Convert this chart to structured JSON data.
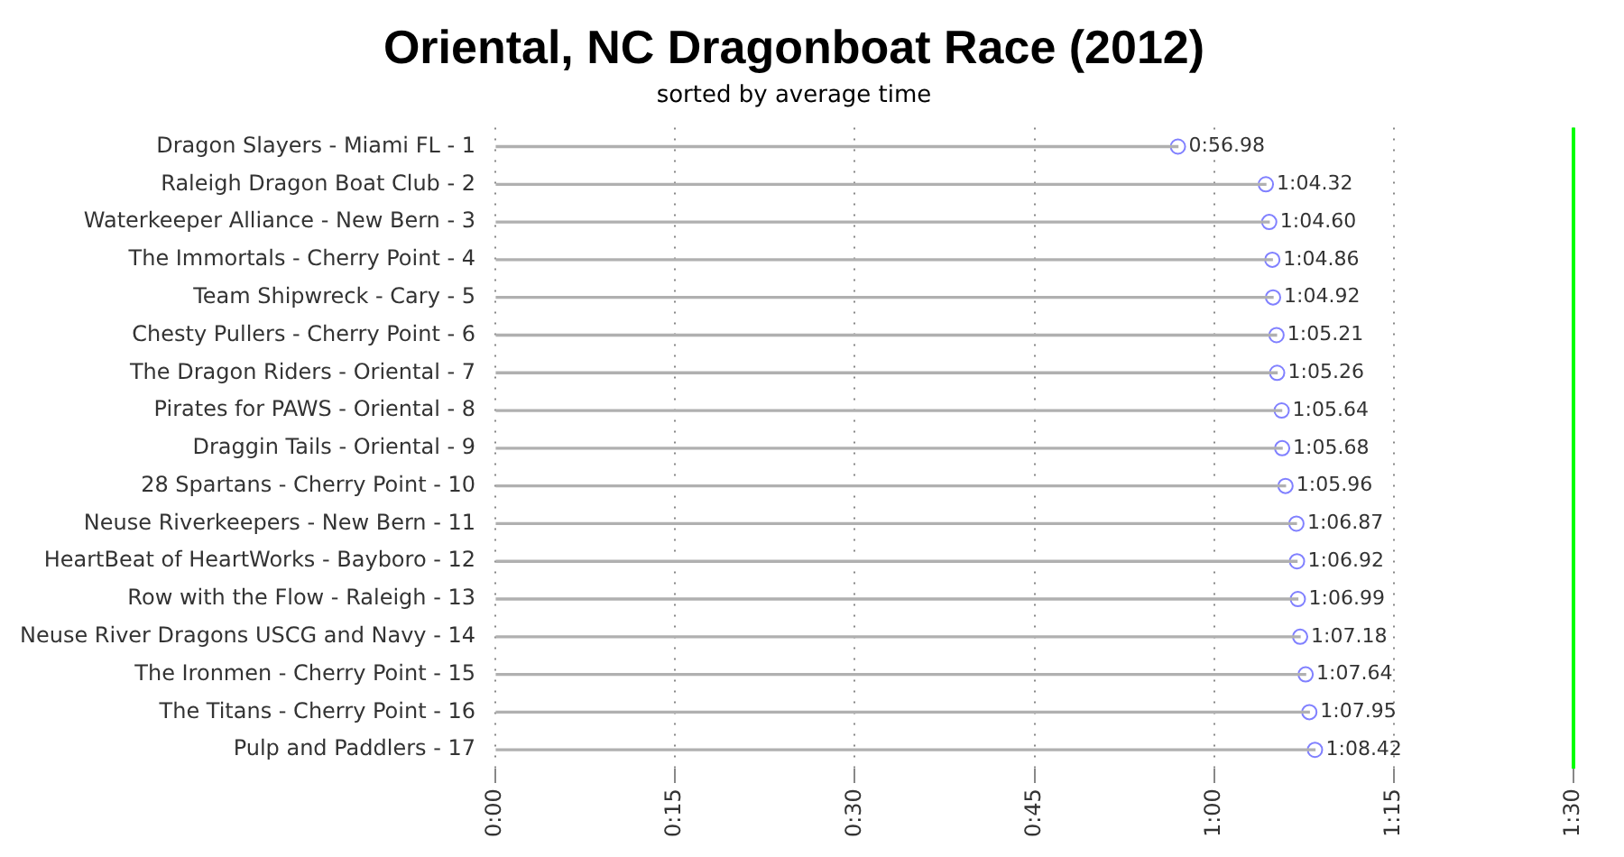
{
  "chart_data": {
    "type": "lollipop",
    "orientation": "horizontal",
    "title": "Oriental, NC Dragonboat Race (2012)",
    "subtitle": "sorted by average time",
    "categories": [
      "Dragon Slayers - Miami FL - 1",
      "Raleigh Dragon Boat Club - 2",
      "Waterkeeper Alliance - New Bern - 3",
      "The Immortals - Cherry Point - 4",
      "Team Shipwreck - Cary - 5",
      "Chesty Pullers - Cherry Point - 6",
      "The Dragon Riders - Oriental - 7",
      "Pirates for PAWS - Oriental - 8",
      "Draggin Tails - Oriental - 9",
      "28 Spartans - Cherry Point - 10",
      "Neuse Riverkeepers - New Bern - 11",
      "HeartBeat of HeartWorks - Bayboro - 12",
      "Row with the Flow - Raleigh - 13",
      "Neuse River Dragons USCG and Navy - 14",
      "The Ironmen - Cherry Point - 15",
      "The Titans - Cherry Point - 16",
      "Pulp and Paddlers - 17"
    ],
    "values": [
      56.98,
      64.32,
      64.6,
      64.86,
      64.92,
      65.21,
      65.26,
      65.64,
      65.68,
      65.96,
      66.87,
      66.92,
      66.99,
      67.18,
      67.64,
      67.95,
      68.42
    ],
    "value_labels": [
      "0:56.98",
      "1:04.32",
      "1:04.60",
      "1:04.86",
      "1:04.92",
      "1:05.21",
      "1:05.26",
      "1:05.64",
      "1:05.68",
      "1:05.96",
      "1:06.87",
      "1:06.92",
      "1:06.99",
      "1:07.18",
      "1:07.64",
      "1:07.95",
      "1:08.42"
    ],
    "color": "#8080ff",
    "marker": "circle",
    "grid": "x",
    "xlim": [
      0,
      90
    ],
    "xticks": [
      {
        "value": 0,
        "label": "0:00"
      },
      {
        "value": 15,
        "label": "0:15"
      },
      {
        "value": 30,
        "label": "0:30"
      },
      {
        "value": 45,
        "label": "0:45"
      },
      {
        "value": 60,
        "label": "1:00"
      },
      {
        "value": 75,
        "label": "1:15"
      },
      {
        "value": 90,
        "label": "1:30"
      }
    ],
    "ref_lines": [
      {
        "axis": "x",
        "value": 90,
        "color": "#00ff00"
      }
    ]
  }
}
